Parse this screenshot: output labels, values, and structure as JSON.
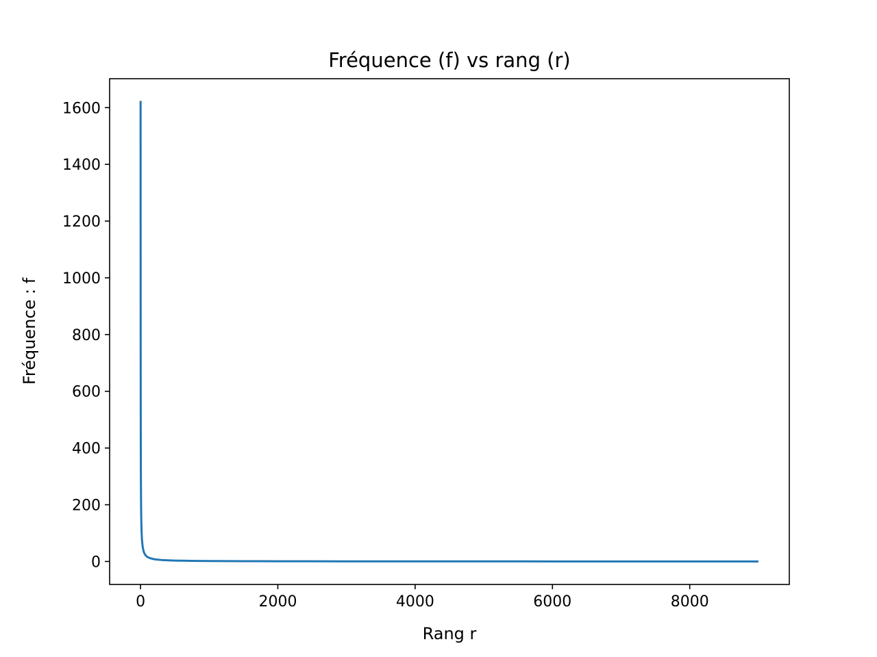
{
  "chart_data": {
    "type": "line",
    "title": "Fréquence (f) vs rang (r)",
    "xlabel": "Rang r",
    "ylabel": "Fréquence : f",
    "xlim": [
      -450,
      9450
    ],
    "ylim": [
      -81,
      1702
    ],
    "xticks": [
      0,
      2000,
      4000,
      6000,
      8000
    ],
    "yticks": [
      0,
      200,
      400,
      600,
      800,
      1000,
      1200,
      1400,
      1600
    ],
    "grid": false,
    "legend": "none",
    "series": [
      {
        "color": "#1f77b4",
        "x": [
          1,
          2,
          3,
          4,
          5,
          6,
          8,
          10,
          15,
          20,
          30,
          40,
          50,
          60,
          80,
          100,
          125,
          150,
          200,
          250,
          300,
          400,
          500,
          600,
          800,
          1000,
          1250,
          1500,
          1750,
          2000,
          2500,
          3000,
          3500,
          4000,
          4500,
          5000,
          5500,
          6000,
          6500,
          7000,
          7500,
          8000,
          8500,
          9000
        ],
        "y": [
          1624,
          812,
          541,
          406,
          325,
          271,
          203,
          162,
          108,
          81,
          54,
          41,
          32,
          27,
          20,
          16,
          13,
          11,
          8,
          6.5,
          5.4,
          4.1,
          3.2,
          2.7,
          2,
          1.6,
          1.3,
          1.1,
          0.9,
          0.8,
          0.65,
          0.54,
          0.46,
          0.4,
          0.36,
          0.32,
          0.3,
          0.27,
          0.25,
          0.23,
          0.22,
          0.2,
          0.19,
          0.18
        ]
      }
    ]
  }
}
